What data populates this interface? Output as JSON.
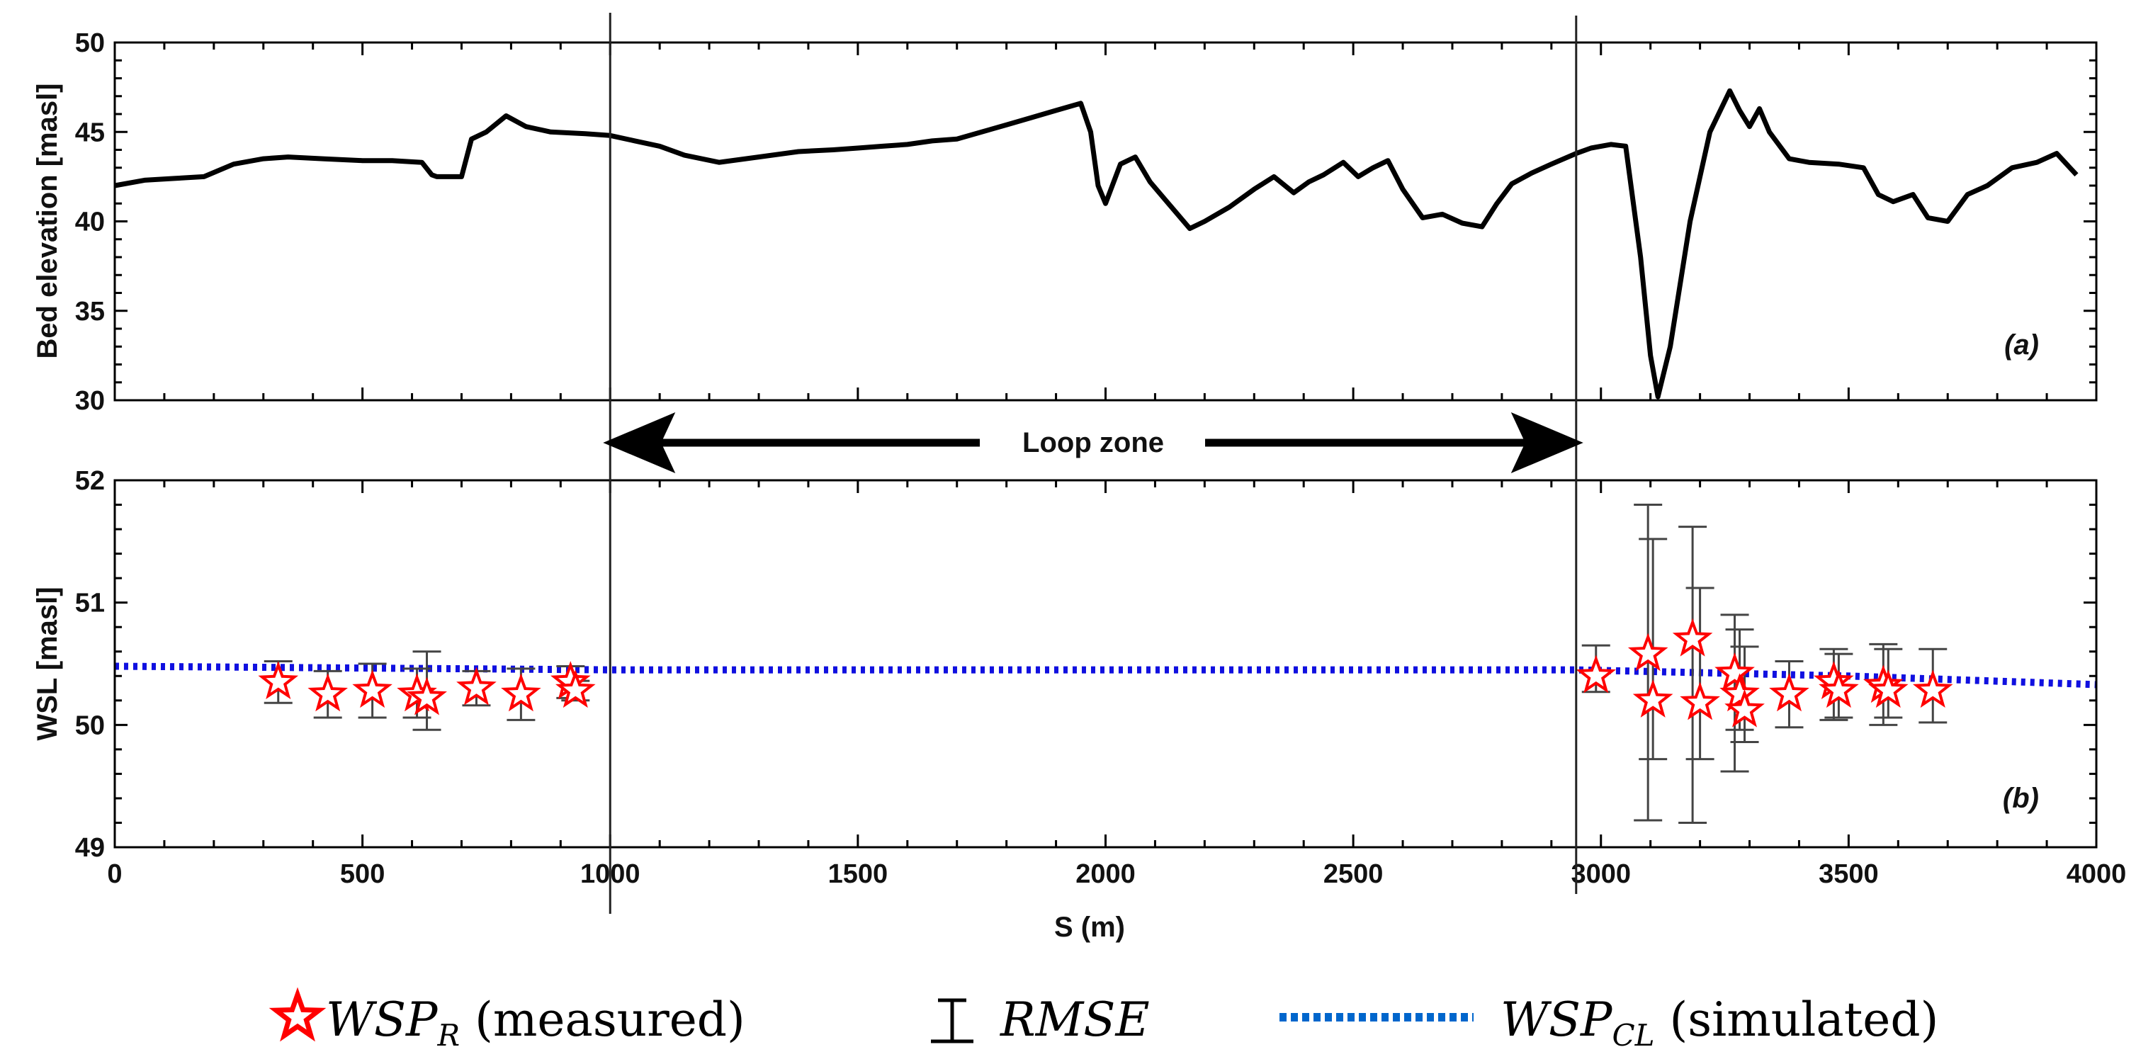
{
  "chart_data": [
    {
      "id": "a",
      "type": "line",
      "panel_tag": "(a)",
      "ylabel": "Bed elevation [masl]",
      "xlabel": "",
      "xlim": [
        0,
        4000
      ],
      "ylim": [
        30,
        50
      ],
      "yticks": [
        30,
        35,
        40,
        45,
        50
      ],
      "xticks": [
        0,
        500,
        1000,
        1500,
        2000,
        2500,
        3000,
        3500,
        4000
      ],
      "grid": false,
      "series": [
        {
          "name": "Bed elevation",
          "color": "#000000",
          "x": [
            0,
            60,
            120,
            180,
            240,
            300,
            350,
            420,
            500,
            560,
            620,
            640,
            650,
            700,
            720,
            750,
            790,
            830,
            880,
            950,
            1000,
            1050,
            1100,
            1150,
            1220,
            1300,
            1380,
            1450,
            1500,
            1550,
            1600,
            1650,
            1700,
            1750,
            1800,
            1850,
            1900,
            1950,
            1970,
            1985,
            2000,
            2030,
            2060,
            2090,
            2130,
            2170,
            2200,
            2250,
            2300,
            2340,
            2380,
            2410,
            2440,
            2480,
            2510,
            2540,
            2570,
            2600,
            2640,
            2680,
            2720,
            2760,
            2790,
            2820,
            2860,
            2900,
            2950,
            2980,
            3020,
            3050,
            3080,
            3100,
            3115,
            3140,
            3180,
            3220,
            3260,
            3280,
            3300,
            3320,
            3340,
            3380,
            3420,
            3480,
            3530,
            3560,
            3590,
            3630,
            3660,
            3700,
            3740,
            3780,
            3830,
            3880,
            3920,
            3960
          ],
          "y": [
            42.0,
            42.3,
            42.4,
            42.5,
            43.2,
            43.5,
            43.6,
            43.5,
            43.4,
            43.4,
            43.3,
            42.6,
            42.5,
            42.5,
            44.6,
            45.0,
            45.9,
            45.3,
            45.0,
            44.9,
            44.8,
            44.5,
            44.2,
            43.7,
            43.3,
            43.6,
            43.9,
            44.0,
            44.1,
            44.2,
            44.3,
            44.5,
            44.6,
            45.0,
            45.4,
            45.8,
            46.2,
            46.6,
            45.0,
            42.0,
            41.0,
            43.2,
            43.6,
            42.2,
            40.9,
            39.6,
            40.0,
            40.8,
            41.8,
            42.5,
            41.6,
            42.2,
            42.6,
            43.3,
            42.5,
            43.0,
            43.4,
            41.8,
            40.2,
            40.4,
            39.9,
            39.7,
            41.0,
            42.1,
            42.7,
            43.2,
            43.8,
            44.1,
            44.3,
            44.2,
            38.0,
            32.5,
            30.2,
            33.0,
            40.0,
            45.0,
            47.3,
            46.2,
            45.3,
            46.3,
            45.0,
            43.5,
            43.3,
            43.2,
            43.0,
            41.5,
            41.1,
            41.5,
            40.2,
            40.0,
            41.5,
            42.0,
            43.0,
            43.3,
            43.8,
            42.6
          ]
        }
      ]
    },
    {
      "id": "b",
      "type": "scatter",
      "panel_tag": "(b)",
      "ylabel": "WSL [masl]",
      "xlabel": "S (m)",
      "xlim": [
        0,
        4000
      ],
      "ylim": [
        49,
        52
      ],
      "yticks": [
        49,
        50,
        51,
        52
      ],
      "xticks": [
        0,
        500,
        1000,
        1500,
        2000,
        2500,
        3000,
        3500,
        4000
      ],
      "grid": false,
      "loop_zone": {
        "label": "Loop zone",
        "x_start": 1000,
        "x_end": 2950
      },
      "series": [
        {
          "name": "WSP_R (measured)",
          "marker": "star",
          "color": "#ff0000",
          "x": [
            330,
            430,
            520,
            610,
            630,
            730,
            820,
            920,
            930,
            2990,
            3095,
            3105,
            3185,
            3200,
            3270,
            3280,
            3290,
            3380,
            3470,
            3480,
            3570,
            3580,
            3670
          ],
          "y": [
            50.35,
            50.25,
            50.28,
            50.25,
            50.22,
            50.3,
            50.25,
            50.35,
            50.28,
            50.4,
            50.58,
            50.2,
            50.7,
            50.18,
            50.42,
            50.25,
            50.12,
            50.25,
            50.35,
            50.28,
            50.32,
            50.28,
            50.28
          ],
          "error_low": [
            50.18,
            50.06,
            50.06,
            50.06,
            49.96,
            50.16,
            50.04,
            50.22,
            50.2,
            50.27,
            49.22,
            49.72,
            49.2,
            49.72,
            49.62,
            49.96,
            49.86,
            49.98,
            50.04,
            50.06,
            50.0,
            50.06,
            50.02
          ],
          "error_high": [
            50.52,
            50.44,
            50.5,
            50.46,
            50.6,
            50.44,
            50.46,
            50.48,
            50.36,
            50.65,
            51.8,
            51.52,
            51.62,
            51.12,
            50.9,
            50.78,
            50.64,
            50.52,
            50.62,
            50.58,
            50.66,
            50.62,
            50.62
          ]
        },
        {
          "name": "WSP_CL (simulated)",
          "style": "dotted",
          "color": "#1010e0",
          "x": [
            0,
            1000,
            2000,
            2950,
            3500,
            4000
          ],
          "y": [
            50.48,
            50.45,
            50.45,
            50.45,
            50.4,
            50.33
          ]
        }
      ]
    }
  ],
  "legend": {
    "items": [
      {
        "name": "WSP",
        "sub": "R",
        "suffix": " (measured)",
        "color": "#ff0000"
      },
      {
        "name": "RMSE",
        "sub": "",
        "suffix": "",
        "color": "#000000"
      },
      {
        "name": "WSP",
        "sub": "CL",
        "suffix": " (simulated)",
        "color": "#0066cc"
      }
    ]
  }
}
